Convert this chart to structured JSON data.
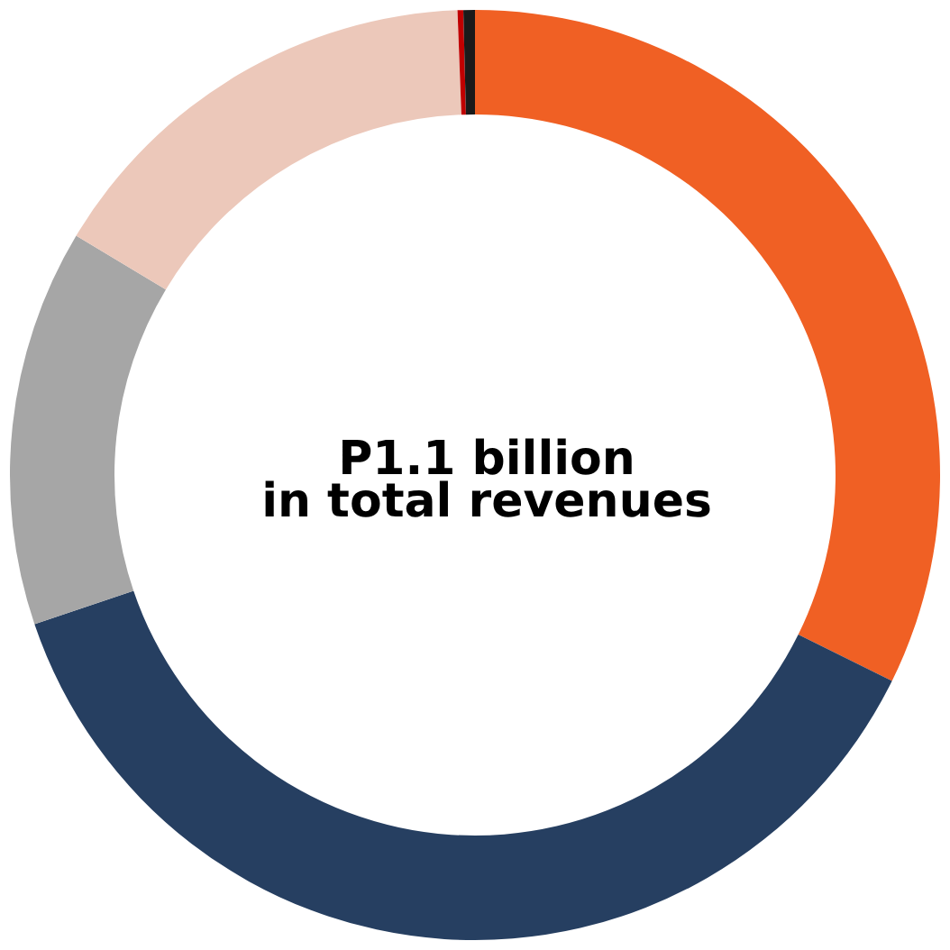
{
  "chart_data": {
    "type": "donut",
    "categories": [
      null,
      null,
      null,
      null,
      null,
      null
    ],
    "values": [
      32.3,
      37.5,
      13.8,
      15.8,
      0.2,
      0.4
    ],
    "colors": [
      "#f06024",
      "#263f61",
      "#a6a6a6",
      "#ecc8ba",
      "#c00000",
      "#1a1a1a"
    ],
    "annotations": [
      "P1.1 billion",
      "in total revenues"
    ]
  }
}
